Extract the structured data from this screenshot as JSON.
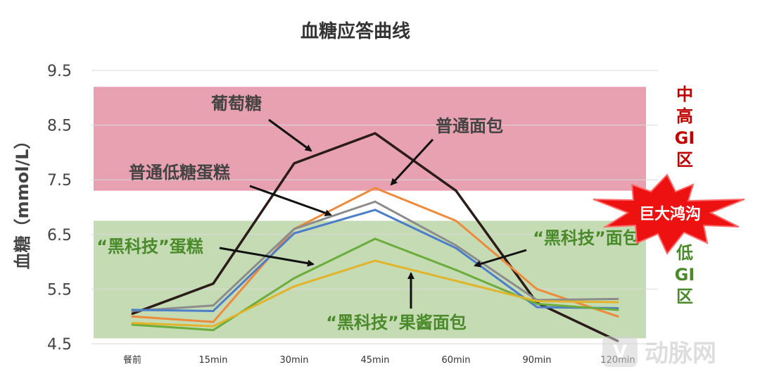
{
  "chart_data": {
    "type": "line",
    "title": "血糖应答曲线",
    "ylabel": "血糖（mmol/L）",
    "xlabel": "",
    "categories": [
      "餐前",
      "15min",
      "30min",
      "45min",
      "60min",
      "90min",
      "120min"
    ],
    "y_ticks": [
      "9.5",
      "8.5",
      "7.5",
      "6.5",
      "5.5",
      "4.5"
    ],
    "ylim": [
      4.5,
      9.5
    ],
    "grid": true,
    "zones": [
      {
        "label_lines": [
          "中",
          "高",
          "GI",
          "区"
        ],
        "y_from": 7.3,
        "y_to": 9.2,
        "color": "#e8a1b0",
        "text_color": "#c00000"
      },
      {
        "label_lines": [
          "低",
          "GI",
          "区"
        ],
        "y_from": 4.6,
        "y_to": 6.75,
        "color": "#c5dbb4",
        "text_color": "#4a8a2a"
      }
    ],
    "series": [
      {
        "name": "葡萄糖",
        "color": "#2b1c1a",
        "values": [
          5.05,
          5.6,
          7.8,
          8.35,
          7.3,
          5.25,
          4.55
        ]
      },
      {
        "name": "普通面包",
        "color": "#ee8a3c",
        "values": [
          5.0,
          4.9,
          6.6,
          7.35,
          6.75,
          5.5,
          5.0
        ]
      },
      {
        "name": "普通低糖蛋糕",
        "color": "#8c8c8c",
        "values": [
          5.1,
          5.2,
          6.6,
          7.1,
          6.3,
          5.3,
          5.32
        ]
      },
      {
        "name": "",
        "color": "#4d7ec8",
        "values": [
          5.12,
          5.1,
          6.52,
          6.95,
          6.25,
          5.17,
          5.15
        ]
      },
      {
        "name": "“黑科技”面包",
        "color": "#6aad3c",
        "values": [
          4.85,
          4.75,
          5.7,
          6.42,
          5.85,
          5.23,
          5.12
        ]
      },
      {
        "name": "“黑科技”果酱面包",
        "color": "#e1b42b",
        "values": [
          4.88,
          4.82,
          5.55,
          6.02,
          5.65,
          5.28,
          5.26
        ]
      }
    ],
    "annotations": [
      {
        "text": "葡萄糖",
        "color": "#444444"
      },
      {
        "text": "普通面包",
        "color": "#444444"
      },
      {
        "text": "普通低糖蛋糕",
        "color": "#444444"
      },
      {
        "text": "“黑科技”蛋糕",
        "color": "#4a8a2a"
      },
      {
        "text": "“黑科技”面包",
        "color": "#4a8a2a"
      },
      {
        "text": "“黑科技”果酱面包",
        "color": "#4a8a2a"
      }
    ],
    "burst_label": "巨大鸿沟",
    "watermark": "动脉网"
  }
}
